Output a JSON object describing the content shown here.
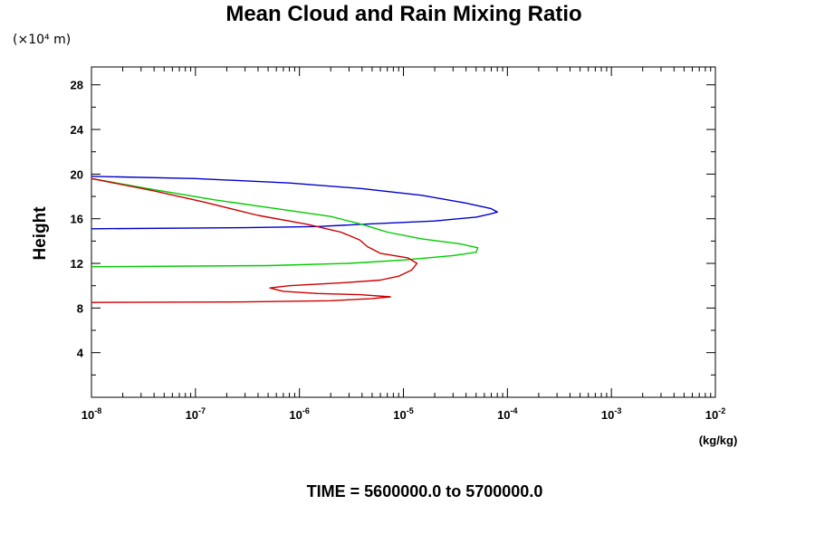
{
  "chart_data": {
    "type": "line",
    "title": "Mean Cloud and Rain Mixing Ratio",
    "y_multiplier_label": "(×10⁴ m)",
    "ylabel": "Height",
    "xunits": "(kg/kg)",
    "footer": "TIME = 5600000.0 to 5700000.0",
    "xscale": "log",
    "xlim": [
      1e-08,
      0.01
    ],
    "ylim": [
      0,
      29.6
    ],
    "x_ticks": [
      {
        "base": "10",
        "exp": "-8",
        "value": 1e-08
      },
      {
        "base": "10",
        "exp": "-7",
        "value": 1e-07
      },
      {
        "base": "10",
        "exp": "-6",
        "value": 1e-06
      },
      {
        "base": "10",
        "exp": "-5",
        "value": 1e-05
      },
      {
        "base": "10",
        "exp": "-4",
        "value": 0.0001
      },
      {
        "base": "10",
        "exp": "-3",
        "value": 0.001
      },
      {
        "base": "10",
        "exp": "-2",
        "value": 0.01
      }
    ],
    "y_ticks": [
      4,
      8,
      12,
      16,
      20,
      24,
      28
    ],
    "grid": false,
    "legend": "none",
    "series": [
      {
        "color": "#0000cc",
        "points": [
          [
            1e-08,
            15.1
          ],
          [
            3e-07,
            15.2
          ],
          [
            1.5e-06,
            15.3
          ],
          [
            5e-06,
            15.55
          ],
          [
            2e-05,
            15.8
          ],
          [
            5e-05,
            16.15
          ],
          [
            7e-05,
            16.45
          ],
          [
            8e-05,
            16.6
          ],
          [
            7e-05,
            16.9
          ],
          [
            4e-05,
            17.4
          ],
          [
            1.5e-05,
            18.1
          ],
          [
            4e-06,
            18.7
          ],
          [
            8e-07,
            19.2
          ],
          [
            1e-07,
            19.6
          ],
          [
            1e-08,
            19.8
          ]
        ]
      },
      {
        "color": "#00cc00",
        "points": [
          [
            1e-08,
            11.7
          ],
          [
            5e-07,
            11.8
          ],
          [
            3e-06,
            12.0
          ],
          [
            1e-05,
            12.3
          ],
          [
            3e-05,
            12.7
          ],
          [
            5e-05,
            13.0
          ],
          [
            5.2e-05,
            13.4
          ],
          [
            3.5e-05,
            13.75
          ],
          [
            1.5e-05,
            14.2
          ],
          [
            7e-06,
            14.8
          ],
          [
            4e-06,
            15.5
          ],
          [
            2e-06,
            16.2
          ],
          [
            6e-07,
            16.9
          ],
          [
            1.5e-07,
            17.7
          ],
          [
            4e-08,
            18.6
          ],
          [
            1e-08,
            19.6
          ]
        ]
      },
      {
        "color": "#cc0000",
        "points": [
          [
            1e-08,
            8.5
          ],
          [
            3e-07,
            8.55
          ],
          [
            2e-06,
            8.65
          ],
          [
            5e-06,
            8.85
          ],
          [
            7.5e-06,
            9.0
          ],
          [
            3.8e-06,
            9.2
          ],
          [
            1.5e-06,
            9.3
          ],
          [
            7e-07,
            9.5
          ],
          [
            5.2e-07,
            9.8
          ],
          [
            8e-07,
            10.0
          ],
          [
            2.5e-06,
            10.25
          ],
          [
            6e-06,
            10.5
          ],
          [
            9e-06,
            10.85
          ],
          [
            1.2e-05,
            11.4
          ],
          [
            1.35e-05,
            12.0
          ],
          [
            1.1e-05,
            12.5
          ],
          [
            6e-06,
            12.9
          ],
          [
            4.5e-06,
            13.5
          ],
          [
            3.8e-06,
            14.1
          ],
          [
            2.5e-06,
            14.8
          ],
          [
            1.2e-06,
            15.5
          ],
          [
            4e-07,
            16.3
          ],
          [
            1.2e-07,
            17.5
          ],
          [
            4e-08,
            18.5
          ],
          [
            1e-08,
            19.6
          ]
        ]
      }
    ]
  }
}
